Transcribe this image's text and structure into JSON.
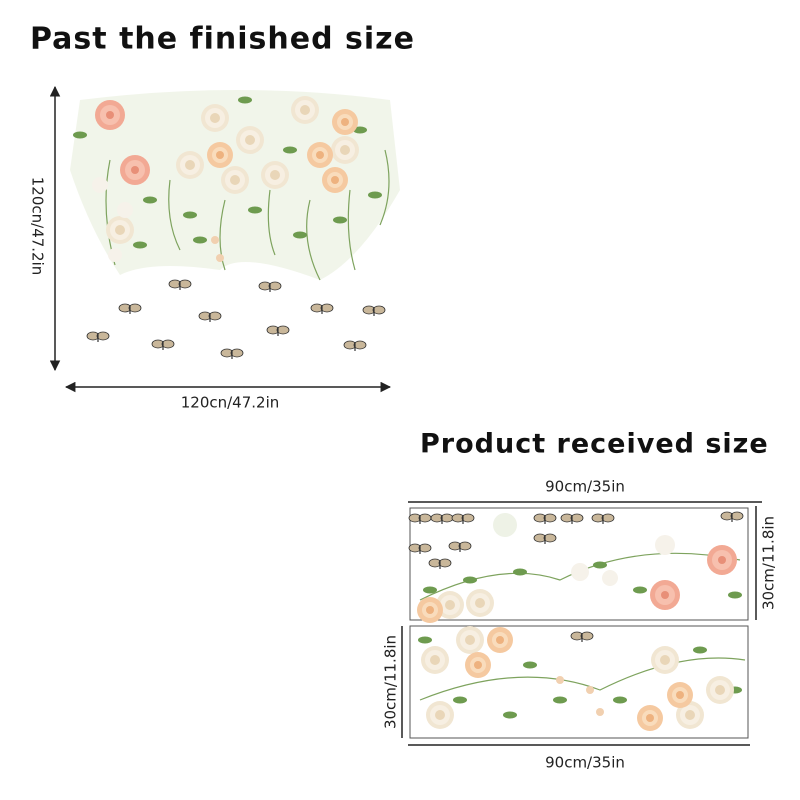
{
  "header": {
    "title": "Past the finished size"
  },
  "finished": {
    "height_label": "120cn/47.2in",
    "width_label": "120cn/47.2in"
  },
  "received": {
    "title": "Product received size",
    "top_width_label": "90cm/35in",
    "right_height_label": "30cm/11.8in",
    "left_height_label": "30cm/11.8in",
    "bottom_width_label": "90cm/35in"
  }
}
